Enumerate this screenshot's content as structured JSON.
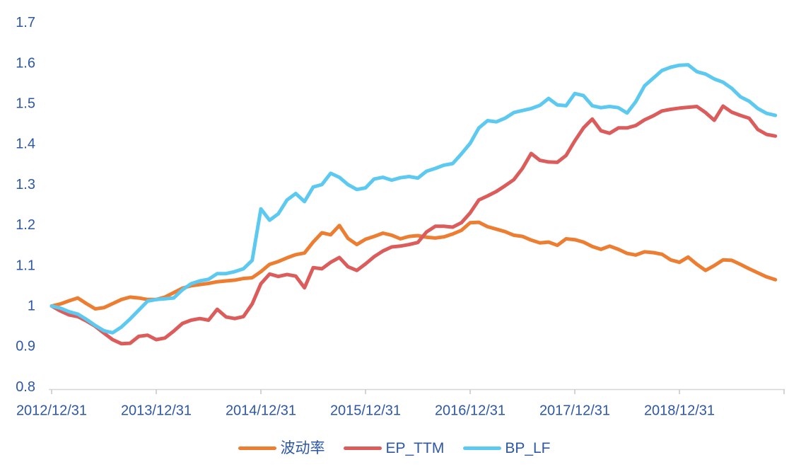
{
  "chart_data": {
    "type": "line",
    "title": "",
    "grid": false,
    "legend_position": "bottom",
    "colors": {
      "axis_text": "#2D57A7",
      "axis_line": "#D6D6D6",
      "tick_line": "#C6C6C6",
      "background": "#FFFFFF"
    },
    "y_axis": {
      "min": 0.8,
      "max": 1.7,
      "step": 0.1
    },
    "y_tick_labels": [
      "1.7",
      "1.6",
      "1.5",
      "1.4",
      "1.3",
      "1.2",
      "1.1",
      "1",
      "0.9",
      "0.8"
    ],
    "x_tick_labels": [
      "2012/12/31",
      "2013/12/31",
      "2014/12/31",
      "2015/12/31",
      "2016/12/31",
      "2017/12/31",
      "2018/12/31"
    ],
    "x": [
      "2012/12",
      "2013/01",
      "2013/02",
      "2013/03",
      "2013/04",
      "2013/05",
      "2013/06",
      "2013/07",
      "2013/08",
      "2013/09",
      "2013/10",
      "2013/11",
      "2013/12",
      "2014/01",
      "2014/02",
      "2014/03",
      "2014/04",
      "2014/05",
      "2014/06",
      "2014/07",
      "2014/08",
      "2014/09",
      "2014/10",
      "2014/11",
      "2014/12",
      "2015/01",
      "2015/02",
      "2015/03",
      "2015/04",
      "2015/05",
      "2015/06",
      "2015/07",
      "2015/08",
      "2015/09",
      "2015/10",
      "2015/11",
      "2015/12",
      "2016/01",
      "2016/02",
      "2016/03",
      "2016/04",
      "2016/05",
      "2016/06",
      "2016/07",
      "2016/08",
      "2016/09",
      "2016/10",
      "2016/11",
      "2016/12",
      "2017/01",
      "2017/02",
      "2017/03",
      "2017/04",
      "2017/05",
      "2017/06",
      "2017/07",
      "2017/08",
      "2017/09",
      "2017/10",
      "2017/11",
      "2017/12",
      "2018/01",
      "2018/02",
      "2018/03",
      "2018/04",
      "2018/05",
      "2018/06",
      "2018/07",
      "2018/08",
      "2018/09",
      "2018/10",
      "2018/11",
      "2018/12",
      "2019/01",
      "2019/02",
      "2019/03",
      "2019/04",
      "2019/05",
      "2019/06",
      "2019/07",
      "2019/08",
      "2019/09",
      "2019/10",
      "2019/11"
    ],
    "series": [
      {
        "name": "波动率",
        "color": "#ED7D31",
        "values": [
          1.0,
          1.005,
          1.013,
          1.02,
          1.006,
          0.993,
          0.996,
          1.006,
          1.016,
          1.022,
          1.02,
          1.016,
          1.016,
          1.022,
          1.033,
          1.044,
          1.05,
          1.053,
          1.056,
          1.06,
          1.062,
          1.064,
          1.068,
          1.07,
          1.085,
          1.103,
          1.11,
          1.119,
          1.127,
          1.131,
          1.158,
          1.181,
          1.176,
          1.199,
          1.167,
          1.152,
          1.165,
          1.172,
          1.18,
          1.175,
          1.166,
          1.172,
          1.174,
          1.17,
          1.168,
          1.171,
          1.178,
          1.187,
          1.206,
          1.207,
          1.196,
          1.19,
          1.184,
          1.175,
          1.172,
          1.163,
          1.156,
          1.158,
          1.15,
          1.166,
          1.164,
          1.158,
          1.147,
          1.14,
          1.148,
          1.14,
          1.13,
          1.126,
          1.134,
          1.132,
          1.128,
          1.114,
          1.108,
          1.121,
          1.103,
          1.088,
          1.1,
          1.114,
          1.113,
          1.103,
          1.092,
          1.082,
          1.072,
          1.065
        ]
      },
      {
        "name": "EP_TTM",
        "color": "#DC5C5C",
        "values": [
          1.0,
          0.988,
          0.978,
          0.974,
          0.963,
          0.95,
          0.933,
          0.917,
          0.907,
          0.908,
          0.925,
          0.928,
          0.917,
          0.921,
          0.938,
          0.957,
          0.965,
          0.969,
          0.965,
          0.992,
          0.973,
          0.969,
          0.974,
          1.005,
          1.055,
          1.079,
          1.073,
          1.078,
          1.074,
          1.045,
          1.095,
          1.092,
          1.108,
          1.12,
          1.097,
          1.088,
          1.104,
          1.122,
          1.136,
          1.146,
          1.148,
          1.152,
          1.157,
          1.183,
          1.197,
          1.197,
          1.195,
          1.206,
          1.23,
          1.262,
          1.272,
          1.283,
          1.297,
          1.312,
          1.34,
          1.377,
          1.36,
          1.356,
          1.355,
          1.372,
          1.408,
          1.44,
          1.462,
          1.433,
          1.427,
          1.44,
          1.44,
          1.446,
          1.46,
          1.47,
          1.482,
          1.486,
          1.489,
          1.491,
          1.493,
          1.478,
          1.459,
          1.494,
          1.479,
          1.471,
          1.464,
          1.436,
          1.424,
          1.42
        ]
      },
      {
        "name": "BP_LF",
        "color": "#5BC9F0",
        "values": [
          1.0,
          0.995,
          0.986,
          0.98,
          0.967,
          0.952,
          0.939,
          0.934,
          0.948,
          0.968,
          0.99,
          1.012,
          1.016,
          1.018,
          1.02,
          1.04,
          1.055,
          1.062,
          1.066,
          1.08,
          1.08,
          1.085,
          1.092,
          1.113,
          1.24,
          1.212,
          1.228,
          1.262,
          1.278,
          1.258,
          1.294,
          1.3,
          1.328,
          1.318,
          1.3,
          1.288,
          1.292,
          1.314,
          1.318,
          1.311,
          1.317,
          1.32,
          1.316,
          1.333,
          1.34,
          1.348,
          1.352,
          1.376,
          1.402,
          1.44,
          1.458,
          1.455,
          1.464,
          1.478,
          1.483,
          1.488,
          1.496,
          1.513,
          1.497,
          1.495,
          1.525,
          1.52,
          1.495,
          1.49,
          1.493,
          1.49,
          1.477,
          1.505,
          1.544,
          1.563,
          1.582,
          1.59,
          1.595,
          1.596,
          1.579,
          1.573,
          1.561,
          1.553,
          1.538,
          1.517,
          1.506,
          1.488,
          1.476,
          1.471
        ]
      }
    ]
  }
}
